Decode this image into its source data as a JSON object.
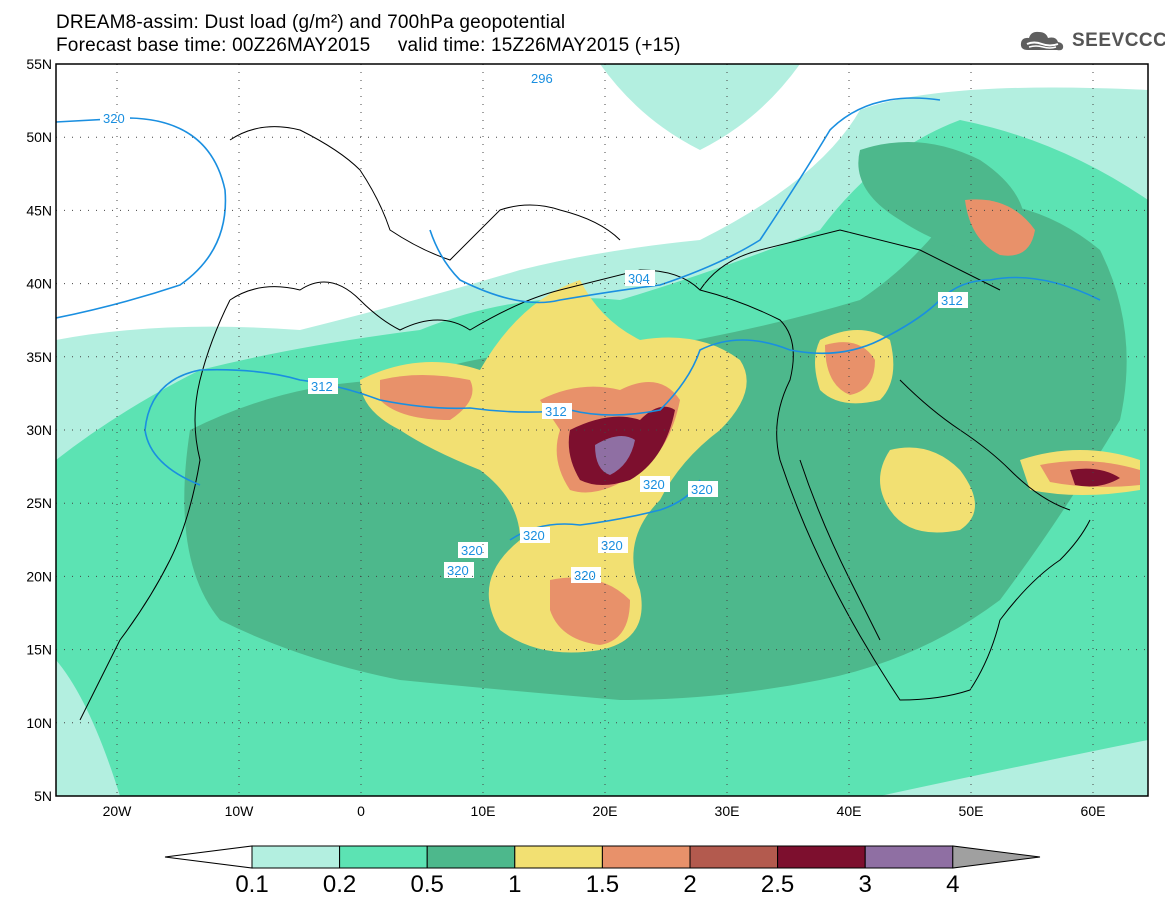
{
  "title": {
    "line1": "DREAM8-assim: Dust load (g/m²) and 700hPa geopotential",
    "line2": "Forecast base time: 00Z26MAY2015     valid time: 15Z26MAY2015 (+15)"
  },
  "logo": {
    "icon": "cloud-icon",
    "text": "SEEVCCC"
  },
  "map": {
    "lat_labels": [
      "55N",
      "50N",
      "45N",
      "40N",
      "35N",
      "30N",
      "25N",
      "20N",
      "15N",
      "10N",
      "5N"
    ],
    "lon_labels": [
      "20W",
      "10W",
      "0",
      "10E",
      "20E",
      "30E",
      "40E",
      "50E",
      "60E"
    ],
    "contour_labels": [
      "320",
      "312",
      "296",
      "304",
      "312",
      "312",
      "312",
      "320",
      "320",
      "320",
      "320",
      "320",
      "320",
      "320"
    ]
  },
  "colorbar": {
    "labels": [
      "0.1",
      "0.2",
      "0.5",
      "1",
      "1.5",
      "2",
      "2.5",
      "3",
      "4"
    ],
    "colors": [
      "#b3efe0",
      "#5ce3b3",
      "#4db88c",
      "#f2e072",
      "#e8916a",
      "#b35a4e",
      "#7d0f2e",
      "#8f6fa3",
      "#a0a0a0"
    ]
  }
}
